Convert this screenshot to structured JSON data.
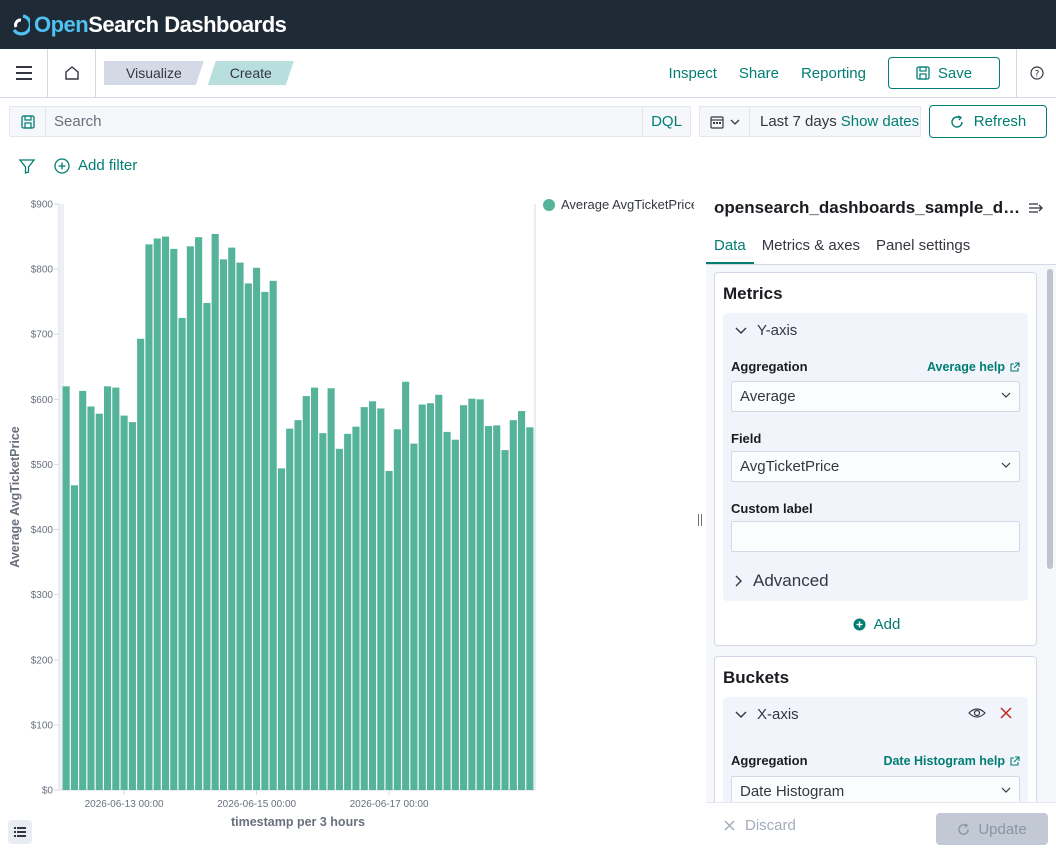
{
  "header": {
    "logo_prefix": "Open",
    "logo_suffix": "Search Dashboards"
  },
  "nav": {
    "breadcrumbs": [
      "Visualize",
      "Create"
    ],
    "inspect": "Inspect",
    "share": "Share",
    "reporting": "Reporting",
    "save": "Save"
  },
  "query": {
    "placeholder": "Search",
    "language": "DQL",
    "date_range": "Last 7 days",
    "show_dates": "Show dates",
    "refresh": "Refresh"
  },
  "filters": {
    "add_filter": "Add filter"
  },
  "sidebar": {
    "index_title": "opensearch_dashboards_sample_data_flights",
    "tabs": [
      "Data",
      "Metrics & axes",
      "Panel settings"
    ],
    "active_tab": "Data",
    "metrics": {
      "title": "Metrics",
      "agg_title": "Y-axis",
      "aggregation_label": "Aggregation",
      "aggregation_help": "Average help",
      "aggregation_value": "Average",
      "field_label": "Field",
      "field_value": "AvgTicketPrice",
      "custom_label": "Custom label",
      "custom_value": "",
      "advanced": "Advanced",
      "add": "Add"
    },
    "buckets": {
      "title": "Buckets",
      "agg_title": "X-axis",
      "aggregation_label": "Aggregation",
      "aggregation_help": "Date Histogram help",
      "aggregation_value": "Date Histogram"
    },
    "footer": {
      "discard": "Discard",
      "update": "Update"
    }
  },
  "colors": {
    "accent": "#017d73",
    "bar": "#54b399",
    "header_bg": "#1f2a37"
  },
  "chart_data": {
    "type": "bar",
    "title": "",
    "xlabel": "timestamp per 3 hours",
    "ylabel": "Average AvgTicketPrice",
    "ylim": [
      0,
      900
    ],
    "yticks": [
      "$0",
      "$100",
      "$200",
      "$300",
      "$400",
      "$500",
      "$600",
      "$700",
      "$800",
      "$900"
    ],
    "xticks": [
      {
        "label": "2026-06-13 00:00",
        "index": 7
      },
      {
        "label": "2026-06-15 00:00",
        "index": 23
      },
      {
        "label": "2026-06-17 00:00",
        "index": 39
      }
    ],
    "legend": {
      "position": "top-right",
      "entries": [
        "Average AvgTicketPrice"
      ]
    },
    "series": [
      {
        "name": "Average AvgTicketPrice",
        "values": [
          620,
          468,
          613,
          589,
          578,
          620,
          618,
          575,
          565,
          693,
          838,
          847,
          850,
          831,
          725,
          835,
          849,
          748,
          854,
          815,
          833,
          810,
          778,
          802,
          765,
          782,
          494,
          555,
          568,
          605,
          618,
          548,
          617,
          524,
          547,
          558,
          588,
          597,
          586,
          490,
          554,
          627,
          532,
          592,
          594,
          607,
          550,
          538,
          591,
          601,
          600,
          559,
          560,
          522,
          568,
          582,
          557
        ]
      }
    ]
  }
}
